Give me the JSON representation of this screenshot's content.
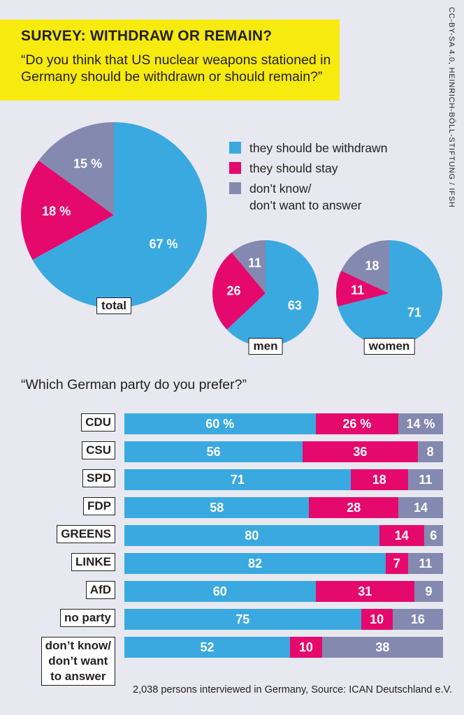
{
  "header": {
    "title": "SURVEY: WITHDRAW OR REMAIN?",
    "subtitle": "“Do you think that US nuclear weapons stationed in Germany should be withdrawn or should remain?”"
  },
  "credit": "CC-BY-SA 4.0, HEINRICH-BÖLL-STIFTUNG / IFSH",
  "colors": {
    "withdrawn": "#3aa9e0",
    "stay": "#e5096d",
    "dontknow": "#8489b0"
  },
  "legend": [
    {
      "key": "withdrawn",
      "label": "they should be withdrawn"
    },
    {
      "key": "stay",
      "label": "they should stay"
    },
    {
      "key": "dontknow",
      "label": "don’t know/\ndon’t want to answer"
    }
  ],
  "question2": "“Which German party do you prefer?”",
  "source": "2,038 persons interviewed in Germany, Source: ICAN Deutschland e.V.",
  "chart_data": [
    {
      "type": "pie",
      "title": "",
      "pies": [
        {
          "name": "total",
          "labels": [
            "67 %",
            "18 %",
            "15 %"
          ],
          "values": [
            67,
            18,
            15
          ]
        },
        {
          "name": "men",
          "labels": [
            "63",
            "26",
            "11"
          ],
          "values": [
            63,
            26,
            11
          ]
        },
        {
          "name": "women",
          "labels": [
            "71",
            "11",
            "18"
          ],
          "values": [
            71,
            11,
            18
          ]
        }
      ],
      "series_names": [
        "they should be withdrawn",
        "they should stay",
        "don’t know/ don’t want to answer"
      ]
    },
    {
      "type": "bar",
      "stacked": true,
      "orientation": "horizontal",
      "title": "“Which German party do you prefer?”",
      "categories": [
        "CDU",
        "CSU",
        "SPD",
        "FDP",
        "GREENS",
        "LINKE",
        "AfD",
        "no party",
        "don’t know/\ndon’t want\nto answer"
      ],
      "series": [
        {
          "name": "they should be withdrawn",
          "values": [
            60,
            56,
            71,
            58,
            80,
            82,
            60,
            75,
            52
          ],
          "labels": [
            "60 %",
            "56",
            "71",
            "58",
            "80",
            "82",
            "60",
            "75",
            "52"
          ]
        },
        {
          "name": "they should stay",
          "values": [
            26,
            36,
            18,
            28,
            14,
            7,
            31,
            10,
            10
          ],
          "labels": [
            "26 %",
            "36",
            "18",
            "28",
            "14",
            "7",
            "31",
            "10",
            "10"
          ]
        },
        {
          "name": "don’t know/ don’t want to answer",
          "values": [
            14,
            8,
            11,
            14,
            6,
            11,
            9,
            16,
            38
          ],
          "labels": [
            "14 %",
            "8",
            "11",
            "14",
            "6",
            "11",
            "9",
            "16",
            "38"
          ]
        }
      ],
      "xlim": [
        0,
        100
      ]
    }
  ]
}
